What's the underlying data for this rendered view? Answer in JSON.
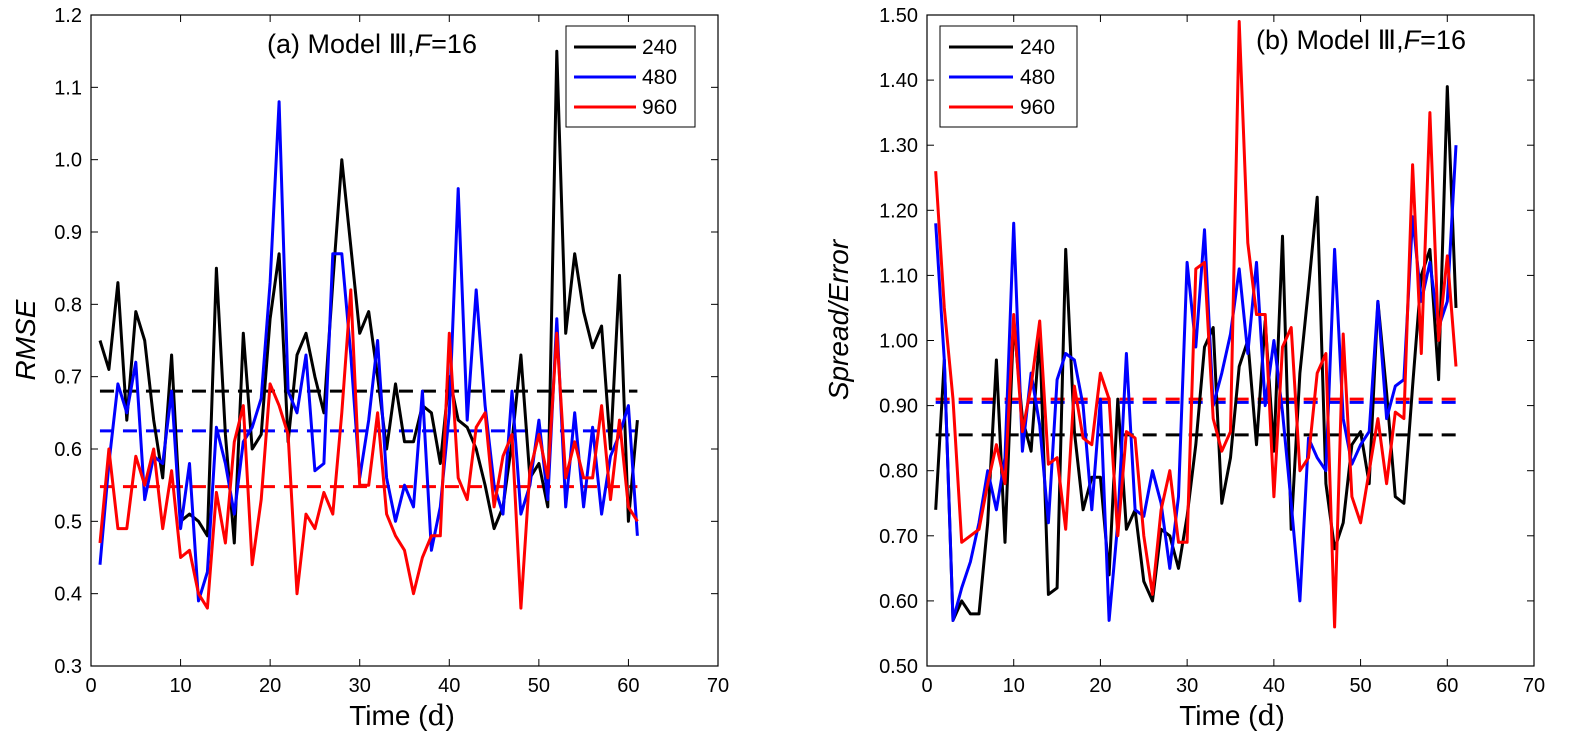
{
  "colors": {
    "240": "#000000",
    "480": "#0000ff",
    "960": "#ff0000"
  },
  "chart_data": [
    {
      "type": "line",
      "title": "(a) Model Ⅲ, F=16",
      "title_parts": {
        "prefix": "(a) Model Ⅲ,",
        "var": "F",
        "suffix": "=16"
      },
      "xlabel": "Time (d)",
      "xlabel_parts": {
        "prefix": "Time (",
        "unit": "d",
        "suffix": ")"
      },
      "ylabel": "RMSE",
      "xlim": [
        0,
        70
      ],
      "ylim": [
        0.3,
        1.2
      ],
      "xticks": [
        "0",
        "10",
        "20",
        "30",
        "40",
        "50",
        "60",
        "70"
      ],
      "yticks": [
        "0.3",
        "0.4",
        "0.5",
        "0.6",
        "0.7",
        "0.8",
        "0.9",
        "1.0",
        "1.1",
        "1.2"
      ],
      "legend_position": "top-right",
      "series": [
        {
          "name": "240",
          "color": "#000000",
          "mean": 0.68,
          "x": [
            1,
            2,
            3,
            4,
            5,
            6,
            7,
            8,
            9,
            10,
            11,
            12,
            13,
            14,
            15,
            16,
            17,
            18,
            19,
            20,
            21,
            22,
            23,
            24,
            25,
            26,
            27,
            28,
            29,
            30,
            31,
            32,
            33,
            34,
            35,
            36,
            37,
            38,
            39,
            40,
            41,
            42,
            43,
            44,
            45,
            46,
            47,
            48,
            49,
            50,
            51,
            52,
            53,
            54,
            55,
            56,
            57,
            58,
            59,
            60,
            61
          ],
          "values": [
            0.75,
            0.71,
            0.83,
            0.64,
            0.79,
            0.75,
            0.64,
            0.56,
            0.73,
            0.5,
            0.51,
            0.5,
            0.48,
            0.85,
            0.62,
            0.47,
            0.76,
            0.6,
            0.62,
            0.78,
            0.87,
            0.61,
            0.73,
            0.76,
            0.7,
            0.65,
            0.83,
            1.0,
            0.88,
            0.76,
            0.79,
            0.7,
            0.6,
            0.69,
            0.61,
            0.61,
            0.66,
            0.65,
            0.58,
            0.7,
            0.64,
            0.63,
            0.6,
            0.55,
            0.49,
            0.52,
            0.61,
            0.73,
            0.56,
            0.58,
            0.52,
            1.15,
            0.76,
            0.87,
            0.79,
            0.74,
            0.77,
            0.6,
            0.84,
            0.5,
            0.64
          ]
        },
        {
          "name": "480",
          "color": "#0000ff",
          "mean": 0.625,
          "x": [
            1,
            2,
            3,
            4,
            5,
            6,
            7,
            8,
            9,
            10,
            11,
            12,
            13,
            14,
            15,
            16,
            17,
            18,
            19,
            20,
            21,
            22,
            23,
            24,
            25,
            26,
            27,
            28,
            29,
            30,
            31,
            32,
            33,
            34,
            35,
            36,
            37,
            38,
            39,
            40,
            41,
            42,
            43,
            44,
            45,
            46,
            47,
            48,
            49,
            50,
            51,
            52,
            53,
            54,
            55,
            56,
            57,
            58,
            59,
            60,
            61
          ],
          "values": [
            0.44,
            0.58,
            0.69,
            0.65,
            0.72,
            0.53,
            0.59,
            0.58,
            0.68,
            0.49,
            0.58,
            0.39,
            0.43,
            0.63,
            0.58,
            0.51,
            0.61,
            0.63,
            0.67,
            0.83,
            1.08,
            0.68,
            0.65,
            0.73,
            0.57,
            0.58,
            0.87,
            0.87,
            0.73,
            0.56,
            0.64,
            0.75,
            0.56,
            0.5,
            0.55,
            0.52,
            0.68,
            0.46,
            0.52,
            0.65,
            0.96,
            0.64,
            0.82,
            0.66,
            0.55,
            0.51,
            0.68,
            0.51,
            0.55,
            0.64,
            0.53,
            0.78,
            0.52,
            0.65,
            0.52,
            0.63,
            0.51,
            0.59,
            0.62,
            0.66,
            0.48
          ]
        },
        {
          "name": "960",
          "color": "#ff0000",
          "mean": 0.548,
          "x": [
            1,
            2,
            3,
            4,
            5,
            6,
            7,
            8,
            9,
            10,
            11,
            12,
            13,
            14,
            15,
            16,
            17,
            18,
            19,
            20,
            21,
            22,
            23,
            24,
            25,
            26,
            27,
            28,
            29,
            30,
            31,
            32,
            33,
            34,
            35,
            36,
            37,
            38,
            39,
            40,
            41,
            42,
            43,
            44,
            45,
            46,
            47,
            48,
            49,
            50,
            51,
            52,
            53,
            54,
            55,
            56,
            57,
            58,
            59,
            60,
            61
          ],
          "values": [
            0.47,
            0.6,
            0.49,
            0.49,
            0.59,
            0.55,
            0.6,
            0.49,
            0.57,
            0.45,
            0.46,
            0.4,
            0.38,
            0.54,
            0.47,
            0.61,
            0.66,
            0.44,
            0.53,
            0.69,
            0.66,
            0.62,
            0.4,
            0.51,
            0.49,
            0.54,
            0.51,
            0.65,
            0.82,
            0.55,
            0.55,
            0.65,
            0.51,
            0.48,
            0.46,
            0.4,
            0.45,
            0.48,
            0.48,
            0.76,
            0.56,
            0.53,
            0.63,
            0.65,
            0.52,
            0.59,
            0.62,
            0.38,
            0.57,
            0.62,
            0.56,
            0.76,
            0.56,
            0.61,
            0.56,
            0.56,
            0.66,
            0.53,
            0.64,
            0.52,
            0.5
          ]
        }
      ]
    },
    {
      "type": "line",
      "title": "(b) Model Ⅲ, F=16",
      "title_parts": {
        "prefix": "(b) Model Ⅲ,",
        "var": "F",
        "suffix": "=16"
      },
      "xlabel": "Time (d)",
      "xlabel_parts": {
        "prefix": "Time (",
        "unit": "d",
        "suffix": ")"
      },
      "ylabel": "Spread/Error",
      "xlim": [
        0,
        70
      ],
      "ylim": [
        0.5,
        1.5
      ],
      "xticks": [
        "0",
        "10",
        "20",
        "30",
        "40",
        "50",
        "60",
        "70"
      ],
      "yticks": [
        "0.50",
        "0.60",
        "0.70",
        "0.80",
        "0.90",
        "1.00",
        "1.10",
        "1.20",
        "1.30",
        "1.40",
        "1.50"
      ],
      "legend_position": "top-left",
      "series": [
        {
          "name": "240",
          "color": "#000000",
          "mean": 0.855,
          "x": [
            1,
            2,
            3,
            4,
            5,
            6,
            7,
            8,
            9,
            10,
            11,
            12,
            13,
            14,
            15,
            16,
            17,
            18,
            19,
            20,
            21,
            22,
            23,
            24,
            25,
            26,
            27,
            28,
            29,
            30,
            31,
            32,
            33,
            34,
            35,
            36,
            37,
            38,
            39,
            40,
            41,
            42,
            43,
            44,
            45,
            46,
            47,
            48,
            49,
            50,
            51,
            52,
            53,
            54,
            55,
            56,
            57,
            58,
            59,
            60,
            61
          ],
          "values": [
            0.74,
            0.97,
            0.57,
            0.6,
            0.58,
            0.58,
            0.72,
            0.97,
            0.69,
            1.03,
            0.88,
            0.83,
            1.01,
            0.61,
            0.62,
            1.14,
            0.86,
            0.74,
            0.79,
            0.79,
            0.64,
            0.91,
            0.71,
            0.74,
            0.63,
            0.6,
            0.71,
            0.7,
            0.65,
            0.73,
            0.84,
            0.99,
            1.02,
            0.75,
            0.82,
            0.96,
            1.0,
            0.84,
            1.03,
            0.83,
            1.16,
            0.71,
            0.95,
            1.08,
            1.22,
            0.78,
            0.68,
            0.72,
            0.84,
            0.86,
            0.78,
            1.06,
            0.92,
            0.76,
            0.75,
            0.93,
            1.1,
            1.14,
            0.94,
            1.39,
            1.05
          ]
        },
        {
          "name": "480",
          "color": "#0000ff",
          "mean": 0.905,
          "x": [
            1,
            2,
            3,
            4,
            5,
            6,
            7,
            8,
            9,
            10,
            11,
            12,
            13,
            14,
            15,
            16,
            17,
            18,
            19,
            20,
            21,
            22,
            23,
            24,
            25,
            26,
            27,
            28,
            29,
            30,
            31,
            32,
            33,
            34,
            35,
            36,
            37,
            38,
            39,
            40,
            41,
            42,
            43,
            44,
            45,
            46,
            47,
            48,
            49,
            50,
            51,
            52,
            53,
            54,
            55,
            56,
            57,
            58,
            59,
            60,
            61
          ],
          "values": [
            1.18,
            0.97,
            0.57,
            0.62,
            0.66,
            0.72,
            0.8,
            0.74,
            0.82,
            1.18,
            0.83,
            0.95,
            0.87,
            0.72,
            0.94,
            0.98,
            0.97,
            0.9,
            0.74,
            0.91,
            0.57,
            0.72,
            0.98,
            0.74,
            0.73,
            0.8,
            0.75,
            0.65,
            0.76,
            1.12,
            0.99,
            1.17,
            0.9,
            0.95,
            1.01,
            1.11,
            0.98,
            1.12,
            0.9,
            1.0,
            0.89,
            0.75,
            0.6,
            0.85,
            0.82,
            0.8,
            1.14,
            0.88,
            0.81,
            0.84,
            0.86,
            1.06,
            0.88,
            0.93,
            0.94,
            1.19,
            1.06,
            1.12,
            1.02,
            1.06,
            1.3
          ]
        },
        {
          "name": "960",
          "color": "#ff0000",
          "mean": 0.91,
          "x": [
            1,
            2,
            3,
            4,
            5,
            6,
            7,
            8,
            9,
            10,
            11,
            12,
            13,
            14,
            15,
            16,
            17,
            18,
            19,
            20,
            21,
            22,
            23,
            24,
            25,
            26,
            27,
            28,
            29,
            30,
            31,
            32,
            33,
            34,
            35,
            36,
            37,
            38,
            39,
            40,
            41,
            42,
            43,
            44,
            45,
            46,
            47,
            48,
            49,
            50,
            51,
            52,
            53,
            54,
            55,
            56,
            57,
            58,
            59,
            60,
            61
          ],
          "values": [
            1.26,
            1.05,
            0.91,
            0.69,
            0.7,
            0.71,
            0.78,
            0.84,
            0.78,
            1.04,
            0.86,
            0.93,
            1.03,
            0.81,
            0.82,
            0.71,
            0.93,
            0.85,
            0.84,
            0.95,
            0.91,
            0.7,
            0.86,
            0.85,
            0.7,
            0.61,
            0.74,
            0.8,
            0.69,
            0.69,
            1.11,
            1.12,
            0.88,
            0.83,
            0.86,
            1.49,
            1.15,
            1.04,
            1.04,
            0.76,
            0.99,
            1.02,
            0.8,
            0.82,
            0.95,
            0.98,
            0.56,
            1.01,
            0.76,
            0.72,
            0.8,
            0.88,
            0.78,
            0.89,
            0.88,
            1.27,
            0.98,
            1.35,
            1.0,
            1.13,
            0.96
          ]
        }
      ]
    }
  ]
}
